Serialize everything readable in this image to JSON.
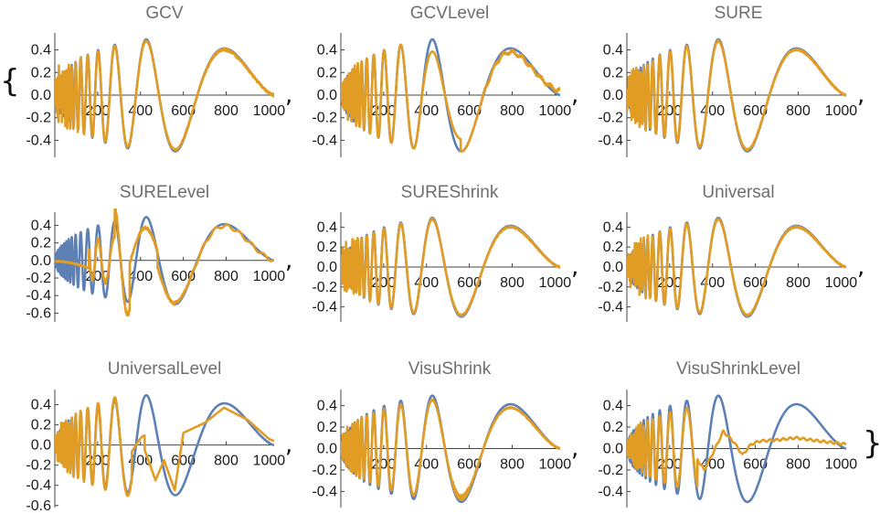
{
  "list_delimiters": {
    "open": "{",
    "close": "}",
    "separator": ","
  },
  "colors": {
    "true_signal": "#5e81b5",
    "denoised": "#e19c24",
    "axis": "#444444"
  },
  "chart_data": [
    {
      "type": "line",
      "title": "GCV",
      "method": "GCV",
      "xlim": [
        0,
        1024
      ],
      "ylim": [
        -0.55,
        0.55
      ],
      "x_ticks": [
        200,
        400,
        600,
        800,
        1000
      ],
      "x_tick_labels": [
        "200",
        "400",
        "600",
        "800",
        "1000"
      ],
      "y_ticks": [
        0.4,
        0.2,
        0.0,
        -0.2,
        -0.4
      ],
      "y_tick_labels": [
        "0.4",
        "0.2",
        "0.0",
        "-0.2",
        "-0.4"
      ],
      "series": [
        {
          "values": "true Doppler signal, range -0.5 to 0.5"
        },
        {
          "values": "denoised estimate: high-frequency left portion noisy, tracks signal well"
        }
      ]
    },
    {
      "type": "line",
      "title": "GCVLevel",
      "method": "GCVLevel",
      "xlim": [
        0,
        1024
      ],
      "ylim": [
        -0.55,
        0.55
      ],
      "x_ticks": [
        200,
        400,
        600,
        800,
        1000
      ],
      "x_tick_labels": [
        "200",
        "400",
        "600",
        "800",
        "1000"
      ],
      "y_ticks": [
        0.4,
        0.2,
        0.0,
        -0.2,
        -0.4
      ],
      "y_tick_labels": [
        "0.4",
        "0.2",
        "0.0",
        "-0.2",
        "-0.4"
      ],
      "series": [
        {
          "values": "true Doppler signal"
        },
        {
          "values": "denoised estimate: slightly damped near x=450, noisy tail near 1000"
        }
      ]
    },
    {
      "type": "line",
      "title": "SURE",
      "method": "SURE",
      "xlim": [
        0,
        1024
      ],
      "ylim": [
        -0.55,
        0.55
      ],
      "x_ticks": [
        200,
        400,
        600,
        800,
        1000
      ],
      "x_tick_labels": [
        "200",
        "400",
        "600",
        "800",
        "1000"
      ],
      "y_ticks": [
        0.4,
        0.2,
        0.0,
        -0.2,
        -0.4
      ],
      "y_tick_labels": [
        "0.4",
        "0.2",
        "0.0",
        "-0.2",
        "-0.4"
      ],
      "series": [
        {
          "values": "true Doppler signal"
        },
        {
          "values": "denoised estimate: close fit"
        }
      ]
    },
    {
      "type": "line",
      "title": "SURELevel",
      "method": "SURELevel",
      "xlim": [
        0,
        1024
      ],
      "ylim": [
        -0.7,
        0.55
      ],
      "x_ticks": [
        200,
        400,
        600,
        800,
        1000
      ],
      "x_tick_labels": [
        "200",
        "400",
        "600",
        "800",
        "1000"
      ],
      "y_ticks": [
        0.4,
        0.2,
        0.0,
        -0.2,
        -0.4,
        -0.6
      ],
      "y_tick_labels": [
        "0.4",
        "0.2",
        "0.0",
        "-0.2",
        "-0.4",
        "-0.6"
      ],
      "series": [
        {
          "values": "true Doppler signal"
        },
        {
          "values": "denoised estimate: oversmoothed at low x, overshoot to about -0.65 near x=330"
        }
      ]
    },
    {
      "type": "line",
      "title": "SUREShrink",
      "method": "SUREShrink",
      "xlim": [
        0,
        1024
      ],
      "ylim": [
        -0.55,
        0.55
      ],
      "x_ticks": [
        200,
        400,
        600,
        800,
        1000
      ],
      "x_tick_labels": [
        "200",
        "400",
        "600",
        "800",
        "1000"
      ],
      "y_ticks": [
        0.4,
        0.2,
        0.0,
        -0.2,
        -0.4
      ],
      "y_tick_labels": [
        "0.4",
        "0.2",
        "0.0",
        "-0.2",
        "-0.4"
      ],
      "series": [
        {
          "values": "true Doppler signal"
        },
        {
          "values": "denoised estimate: close fit"
        }
      ]
    },
    {
      "type": "line",
      "title": "Universal",
      "method": "Universal",
      "xlim": [
        0,
        1024
      ],
      "ylim": [
        -0.55,
        0.55
      ],
      "x_ticks": [
        200,
        400,
        600,
        800,
        1000
      ],
      "x_tick_labels": [
        "200",
        "400",
        "600",
        "800",
        "1000"
      ],
      "y_ticks": [
        0.4,
        0.2,
        0.0,
        -0.2,
        -0.4
      ],
      "y_tick_labels": [
        "0.4",
        "0.2",
        "0.0",
        "-0.2",
        "-0.4"
      ],
      "series": [
        {
          "values": "true Doppler signal"
        },
        {
          "values": "denoised estimate: close fit"
        }
      ]
    },
    {
      "type": "line",
      "title": "UniversalLevel",
      "method": "UniversalLevel",
      "xlim": [
        0,
        1024
      ],
      "ylim": [
        -0.62,
        0.55
      ],
      "x_ticks": [
        200,
        400,
        600,
        800,
        1000
      ],
      "x_tick_labels": [
        "200",
        "400",
        "600",
        "800",
        "1000"
      ],
      "y_ticks": [
        0.4,
        0.2,
        0.0,
        -0.2,
        -0.4,
        -0.6
      ],
      "y_tick_labels": [
        "0.4",
        "0.2",
        "0.0",
        "-0.2",
        "-0.4",
        "-0.6"
      ],
      "series": [
        {
          "values": "true Doppler signal"
        },
        {
          "values": "denoised estimate: good at low x, piecewise-linear and damped for x>400"
        }
      ]
    },
    {
      "type": "line",
      "title": "VisuShrink",
      "method": "VisuShrink",
      "xlim": [
        0,
        1024
      ],
      "ylim": [
        -0.55,
        0.55
      ],
      "x_ticks": [
        200,
        400,
        600,
        800,
        1000
      ],
      "x_tick_labels": [
        "200",
        "400",
        "600",
        "800",
        "1000"
      ],
      "y_ticks": [
        0.4,
        0.2,
        0.0,
        -0.2,
        -0.4
      ],
      "y_tick_labels": [
        "0.4",
        "0.2",
        "0.0",
        "-0.2",
        "-0.4"
      ],
      "series": [
        {
          "values": "true Doppler signal"
        },
        {
          "values": "denoised estimate: close fit, slight noise at trough near x=550"
        }
      ]
    },
    {
      "type": "line",
      "title": "VisuShrinkLevel",
      "method": "VisuShrinkLevel",
      "xlim": [
        0,
        1024
      ],
      "ylim": [
        -0.55,
        0.55
      ],
      "x_ticks": [
        200,
        400,
        600,
        800,
        1000
      ],
      "x_tick_labels": [
        "200",
        "400",
        "600",
        "800",
        "1000"
      ],
      "y_ticks": [
        0.4,
        0.2,
        0.0,
        -0.2,
        -0.4
      ],
      "y_tick_labels": [
        "0.4",
        "0.2",
        "0.0",
        "-0.2",
        "-0.4"
      ],
      "series": [
        {
          "values": "true Doppler signal"
        },
        {
          "values": "denoised estimate: heavily damped, peak about 0.16 near x=450, then flat about 0.08"
        }
      ]
    }
  ]
}
